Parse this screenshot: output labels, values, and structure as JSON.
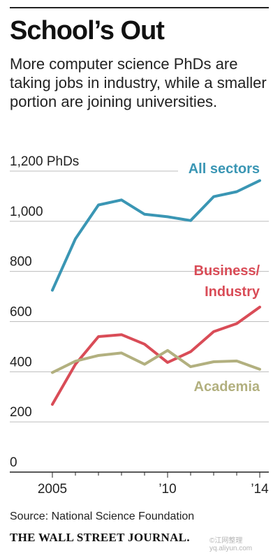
{
  "header": {
    "title": "School’s Out",
    "subtitle": "More computer science PhDs are taking jobs in industry, while a smaller portion are joining universities."
  },
  "chart_data": {
    "type": "line",
    "title": "School’s Out",
    "subtitle": "More computer science PhDs are taking jobs in industry, while a smaller portion are joining universities.",
    "ylabel": "",
    "y_unit_label": "1,200 PhDs",
    "ylim": [
      0,
      1200
    ],
    "y_ticks": [
      0,
      200,
      400,
      600,
      800,
      1000,
      1200
    ],
    "y_tick_labels": [
      "0",
      "200",
      "400",
      "600",
      "800",
      "1,000",
      "1,200 PhDs"
    ],
    "x": [
      2005,
      2006,
      2007,
      2008,
      2009,
      2010,
      2011,
      2012,
      2013,
      2014
    ],
    "x_ticks": [
      2005,
      2010,
      2014
    ],
    "x_tick_labels": [
      "2005",
      "’10",
      "’14"
    ],
    "grid": true,
    "series": [
      {
        "name": "All sectors",
        "color": "#3a96b4",
        "values": [
          725,
          930,
          1065,
          1085,
          1028,
          1018,
          1003,
          1098,
          1118,
          1162
        ]
      },
      {
        "name": "Business/ Industry",
        "color": "#d94c57",
        "values": [
          270,
          430,
          540,
          548,
          510,
          437,
          480,
          560,
          592,
          658
        ]
      },
      {
        "name": "Academia",
        "color": "#b2b07f",
        "values": [
          397,
          442,
          465,
          475,
          430,
          485,
          420,
          440,
          443,
          410
        ]
      }
    ]
  },
  "footer": {
    "source": "Source: National Science Foundation",
    "publisher": "THE WALL STREET JOURNAL.",
    "watermark": "©江网整理 yq.aliyun.com"
  }
}
